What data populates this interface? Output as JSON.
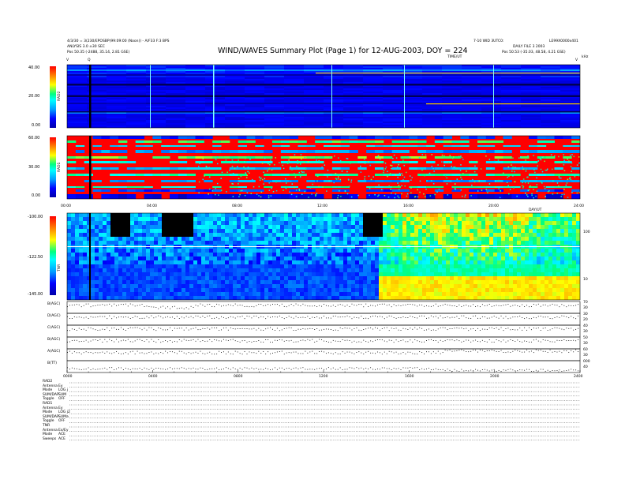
{
  "header": {
    "title": "WIND/WAVES Summary Plot (Page 1) for 12-AUG-2003, DOY = 224",
    "top_left_line1": "4/3/30 = 3(230/EPOSBP(99:09:00 (Noon)) - A/F33 F:3 BPS",
    "top_left_line2": "ANLYSIS 3.0 ±30 SEC",
    "top_left_line3": "Pos   50.35 (-2488, 35.14, 2.81 GSE)",
    "top_right_line1": "7-10 WID 3UTC0:",
    "top_right_line2": "LE99X0000x401",
    "top_right_line3": "DAILY FILE 3 2003",
    "top_right_line4": "Pos   50.53 (-35.03, 48.58, 4.21 GSE)",
    "time_units": "TIME/UT",
    "ktc_label": "kHz",
    "marker_q": "Q",
    "marker_left": "V",
    "marker_right": "V"
  },
  "panels": {
    "rad2": {
      "label": "RAD2",
      "ticks": [
        "40.00",
        "20.00",
        "0.00"
      ]
    },
    "rad1": {
      "label": "RAD1",
      "ticks": [
        "60.00",
        "30.00",
        "0.00"
      ]
    },
    "tnr": {
      "label": "TNR",
      "ticks": [
        "-100.00",
        "-122.50",
        "-145.00"
      ],
      "right_ticks": [
        "100",
        "10"
      ]
    },
    "mid_time_ticks": [
      "00:00",
      "04:00",
      "08:00",
      "12:00",
      "16:00",
      "20:00",
      "24:00"
    ],
    "mid_time_unit": "DAY/UT",
    "lines": [
      {
        "label": "B(AGC)",
        "r1": "70",
        "r2": "30"
      },
      {
        "label": "D(AGC)",
        "r1": "30",
        "r2": "20"
      },
      {
        "label": "C(AGC)",
        "r1": "40",
        "r2": "30"
      },
      {
        "label": "B(AGC)",
        "r1": "50",
        "r2": "30"
      },
      {
        "label": "A(AGC)",
        "r1": "60",
        "r2": "30"
      },
      {
        "label": "B(TT)",
        "r1": "000",
        "r2": "40"
      }
    ],
    "bottom_time_ticks": [
      "0000",
      "0400",
      "0800",
      "1200",
      "1600",
      "2000",
      "2400"
    ]
  },
  "info_block": [
    [
      "RAD2",
      ""
    ],
    [
      "Antenna",
      "Ey"
    ],
    [
      "Mode",
      "LOG j"
    ],
    [
      "SUM/DAP",
      "SUM"
    ],
    [
      "Toggle",
      "OFF"
    ],
    [
      "RAD1",
      ""
    ],
    [
      "Antenna",
      "Ey"
    ],
    [
      "Mode",
      "LOG j2"
    ],
    [
      "SUM/DAP",
      "SUMa"
    ],
    [
      "Toggle",
      "OFF"
    ],
    [
      "TNR",
      ""
    ],
    [
      "Antenna",
      "Ex/Ey"
    ],
    [
      "Mode",
      "ACE"
    ],
    [
      "Sweeps",
      "ACE"
    ]
  ],
  "chart_data": {
    "type": "heatmap",
    "title": "WIND/WAVES Summary Plot (Page 1) for 12-AUG-2003, DOY = 224",
    "x": [
      "00:00",
      "04:00",
      "08:00",
      "12:00",
      "16:00",
      "20:00",
      "24:00"
    ],
    "xlim": [
      "00:00",
      "24:00"
    ],
    "panels": [
      {
        "name": "RAD2",
        "colorbar_range": [
          0,
          40
        ]
      },
      {
        "name": "RAD1",
        "colorbar_range": [
          0,
          60
        ]
      },
      {
        "name": "TNR",
        "colorbar_range": [
          -145,
          -100
        ],
        "y_ticks": [
          10,
          100
        ],
        "ylabel_unit": "kHz",
        "log_scale": true
      }
    ],
    "line_panels": [
      "B(AGC)",
      "D(AGC)",
      "C(AGC)",
      "B(AGC)",
      "A(AGC)",
      "B(TT)"
    ],
    "colors": [
      "#000080",
      "#0000ff",
      "#00c0ff",
      "#00ffff",
      "#00ff80",
      "#ffff00",
      "#ff8000",
      "#ff0000"
    ]
  }
}
